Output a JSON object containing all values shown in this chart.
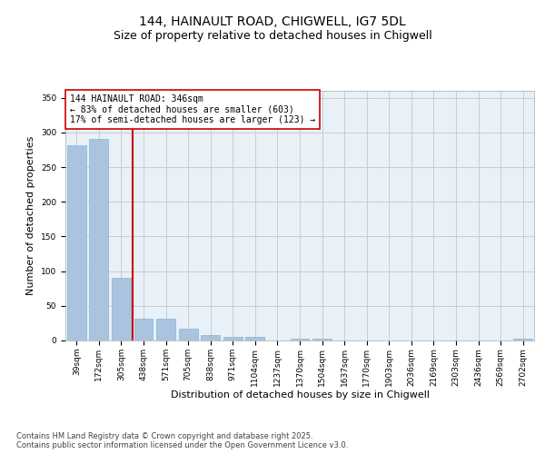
{
  "title1": "144, HAINAULT ROAD, CHIGWELL, IG7 5DL",
  "title2": "Size of property relative to detached houses in Chigwell",
  "xlabel": "Distribution of detached houses by size in Chigwell",
  "ylabel": "Number of detached properties",
  "categories": [
    "39sqm",
    "172sqm",
    "305sqm",
    "438sqm",
    "571sqm",
    "705sqm",
    "838sqm",
    "971sqm",
    "1104sqm",
    "1237sqm",
    "1370sqm",
    "1504sqm",
    "1637sqm",
    "1770sqm",
    "1903sqm",
    "2036sqm",
    "2169sqm",
    "2303sqm",
    "2436sqm",
    "2569sqm",
    "2702sqm"
  ],
  "values": [
    281,
    291,
    90,
    32,
    32,
    17,
    8,
    5,
    5,
    0,
    2,
    2,
    0,
    0,
    0,
    0,
    0,
    0,
    0,
    0,
    2
  ],
  "bar_color": "#aac4e0",
  "bar_edge_color": "#8ab4d0",
  "vline_color": "#cc0000",
  "vline_x": 2.5,
  "annotation_text": "144 HAINAULT ROAD: 346sqm\n← 83% of detached houses are smaller (603)\n17% of semi-detached houses are larger (123) →",
  "annotation_box_color": "#ffffff",
  "annotation_box_edge": "#cc0000",
  "ylim": [
    0,
    360
  ],
  "yticks": [
    0,
    50,
    100,
    150,
    200,
    250,
    300,
    350
  ],
  "grid_color": "#cccccc",
  "bg_color": "#e8f0f8",
  "footer": "Contains HM Land Registry data © Crown copyright and database right 2025.\nContains public sector information licensed under the Open Government Licence v3.0.",
  "title_fontsize": 10,
  "subtitle_fontsize": 9,
  "tick_fontsize": 6.5,
  "ylabel_fontsize": 8,
  "xlabel_fontsize": 8,
  "footer_fontsize": 6,
  "annotation_fontsize": 7
}
